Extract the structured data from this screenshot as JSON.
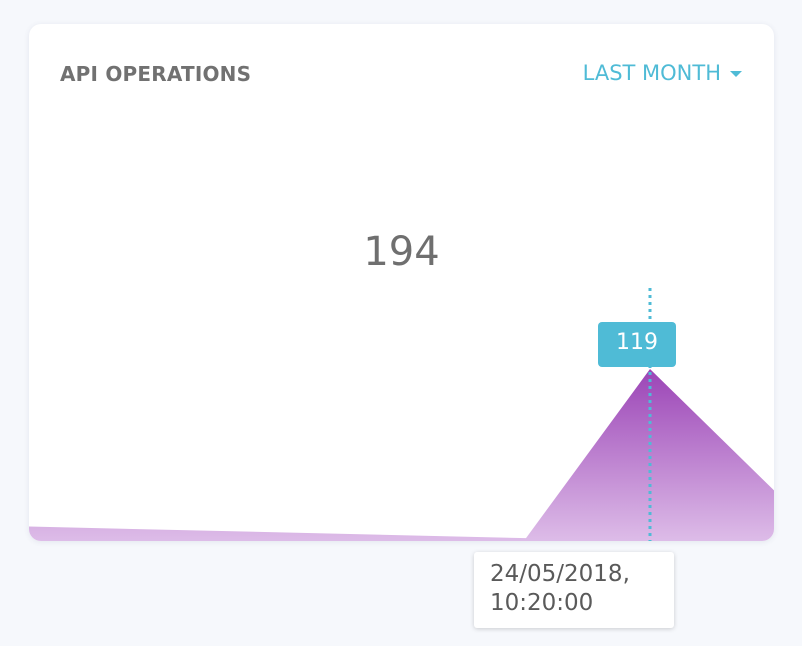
{
  "card": {
    "title": "API OPERATIONS",
    "range": {
      "selected": "LAST MONTH",
      "icon": "caret-down-icon"
    },
    "total": "194"
  },
  "colors": {
    "accent": "#4fbbd6",
    "area_top": "#9b44b6",
    "area_bottom": "#ddbce8"
  },
  "tooltip": {
    "date": "24/05/2018,\n10:20:00"
  },
  "chart_data": {
    "type": "area",
    "series": [
      {
        "values": [
          10,
          2,
          119,
          35
        ]
      }
    ],
    "highlight": {
      "index": 2,
      "value": "119"
    },
    "ylim": [
      0,
      140
    ]
  }
}
